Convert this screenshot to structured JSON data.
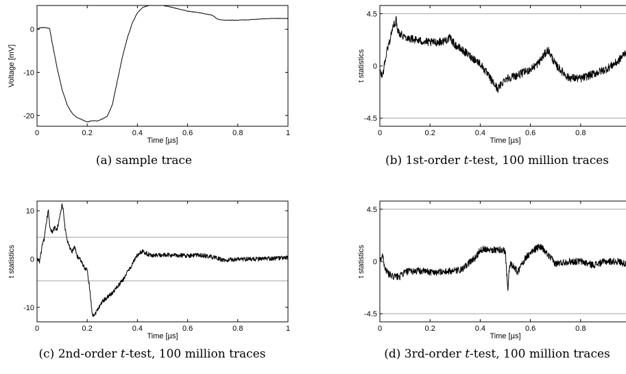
{
  "chart_data": [
    {
      "type": "line",
      "panel": "a",
      "caption": {
        "prefix": "(a) sample trace",
        "italic": "",
        "suffix": ""
      },
      "xlabel": "Time [µs]",
      "ylabel": "Voltage [mV]",
      "xlim": [
        0,
        1
      ],
      "ylim": [
        -22.5,
        5.5
      ],
      "xticks": [
        0,
        0.2,
        0.4,
        0.6,
        0.8,
        1
      ],
      "xtick_labels": [
        "0",
        "0.2",
        "0.4",
        "0.6",
        "0.8",
        "1"
      ],
      "yticks": [
        0,
        -10,
        -20
      ],
      "ytick_labels": [
        "0",
        "-10",
        "-20"
      ],
      "hlines": [],
      "noise": 0,
      "series": [
        {
          "x": [
            0,
            0.01,
            0.03,
            0.05,
            0.06,
            0.08,
            0.1,
            0.12,
            0.14,
            0.16,
            0.18,
            0.2,
            0.22,
            0.24,
            0.26,
            0.28,
            0.3,
            0.32,
            0.34,
            0.36,
            0.38,
            0.4,
            0.42,
            0.44,
            0.46,
            0.48,
            0.5,
            0.52,
            0.55,
            0.6,
            0.65,
            0.7,
            0.72,
            0.75,
            0.8,
            0.85,
            0.9,
            0.95,
            1
          ],
          "y": [
            0,
            0.3,
            0.4,
            0.2,
            -3,
            -9,
            -14,
            -17.5,
            -19.5,
            -20.5,
            -21,
            -21.5,
            -21.2,
            -21.3,
            -20.8,
            -20.2,
            -17.5,
            -12,
            -6.5,
            -2,
            1.5,
            3.8,
            5,
            5.4,
            5.6,
            5.6,
            5.5,
            5.3,
            4.9,
            4.2,
            3.8,
            3.2,
            2.3,
            2.1,
            2.1,
            2.2,
            2.4,
            2.5,
            2.5
          ]
        }
      ]
    },
    {
      "type": "line",
      "panel": "b",
      "caption": {
        "prefix": "(b) 1st-order ",
        "italic": "t",
        "suffix": "-test, 100 million traces"
      },
      "xlabel": "Time [µs]",
      "ylabel": "t statistics",
      "xlim": [
        0,
        1
      ],
      "ylim": [
        -5.2,
        5.2
      ],
      "xticks": [
        0,
        0.2,
        0.4,
        0.6,
        0.8
      ],
      "xtick_labels": [
        "0",
        "0.2",
        "0.4",
        "0.6",
        "0.8"
      ],
      "yticks": [
        4.5,
        0,
        -4.5
      ],
      "ytick_labels": [
        "4.5",
        "0",
        "-4.5"
      ],
      "hlines": [
        4.5,
        -4.5
      ],
      "noise": 0.35,
      "series": [
        {
          "x": [
            0,
            0.01,
            0.02,
            0.03,
            0.04,
            0.05,
            0.06,
            0.065,
            0.07,
            0.08,
            0.1,
            0.15,
            0.2,
            0.25,
            0.28,
            0.3,
            0.35,
            0.4,
            0.45,
            0.47,
            0.5,
            0.55,
            0.6,
            0.63,
            0.65,
            0.67,
            0.7,
            0.75,
            0.8,
            0.85,
            0.9,
            0.95,
            0.98
          ],
          "y": [
            -0.5,
            -0.9,
            0.3,
            1.5,
            2.2,
            3.2,
            3.7,
            4.0,
            3.2,
            2.8,
            2.5,
            2.2,
            2.0,
            2.1,
            2.4,
            1.8,
            1.0,
            0.2,
            -1.4,
            -2.0,
            -1.1,
            -0.8,
            -0.3,
            0.2,
            0.8,
            1.4,
            0.1,
            -1.0,
            -1.1,
            -0.7,
            -0.3,
            0.4,
            1.2
          ]
        }
      ]
    },
    {
      "type": "line",
      "panel": "c",
      "caption": {
        "prefix": "(c) 2nd-order ",
        "italic": "t",
        "suffix": "-test, 100 million traces"
      },
      "xlabel": "Time [µs]",
      "ylabel": "t statistics",
      "xlim": [
        0,
        1
      ],
      "ylim": [
        -13,
        12
      ],
      "xticks": [
        0,
        0.2,
        0.4,
        0.6,
        0.8,
        1
      ],
      "xtick_labels": [
        "0",
        "0.2",
        "0.4",
        "0.6",
        "0.8",
        "1"
      ],
      "yticks": [
        10,
        0,
        -10
      ],
      "ytick_labels": [
        "10",
        "0",
        "-10"
      ],
      "hlines": [
        4.5,
        -4.5
      ],
      "noise": 0.45,
      "series": [
        {
          "x": [
            0,
            0.01,
            0.02,
            0.03,
            0.04,
            0.045,
            0.05,
            0.06,
            0.07,
            0.08,
            0.09,
            0.1,
            0.105,
            0.11,
            0.12,
            0.13,
            0.14,
            0.15,
            0.16,
            0.17,
            0.18,
            0.19,
            0.2,
            0.21,
            0.22,
            0.23,
            0.24,
            0.26,
            0.3,
            0.34,
            0.38,
            0.4,
            0.42,
            0.45,
            0.5,
            0.55,
            0.6,
            0.65,
            0.7,
            0.75,
            0.8,
            0.9,
            1
          ],
          "y": [
            0,
            -0.5,
            2.5,
            4.5,
            8.5,
            10.2,
            7,
            5.5,
            6.5,
            6.3,
            8.5,
            11.3,
            9.8,
            7,
            4,
            2.5,
            1.5,
            2.8,
            0.5,
            0,
            -1,
            -1.8,
            -2.3,
            -6,
            -11.5,
            -11.5,
            -10.5,
            -8.8,
            -7,
            -4.5,
            -1,
            0.8,
            1.6,
            0.8,
            0.8,
            0.8,
            0.7,
            0.8,
            0.4,
            -0.3,
            0,
            0,
            0.3
          ]
        }
      ]
    },
    {
      "type": "line",
      "panel": "d",
      "caption": {
        "prefix": "(d) 3rd-order ",
        "italic": "t",
        "suffix": "-test, 100 million traces"
      },
      "xlabel": "Time [µs]",
      "ylabel": "t statistics",
      "xlim": [
        0,
        1
      ],
      "ylim": [
        -5.2,
        5.2
      ],
      "xticks": [
        0,
        0.2,
        0.4,
        0.6,
        0.8
      ],
      "xtick_labels": [
        "0",
        "0.2",
        "0.4",
        "0.6",
        "0.8"
      ],
      "yticks": [
        4.5,
        0,
        -4.5
      ],
      "ytick_labels": [
        "4.5",
        "0",
        "-4.5"
      ],
      "hlines": [
        4.5,
        -4.5
      ],
      "noise": 0.3,
      "series": [
        {
          "x": [
            0,
            0.01,
            0.02,
            0.03,
            0.05,
            0.08,
            0.1,
            0.15,
            0.2,
            0.25,
            0.3,
            0.33,
            0.36,
            0.38,
            0.4,
            0.42,
            0.45,
            0.48,
            0.5,
            0.505,
            0.51,
            0.515,
            0.52,
            0.55,
            0.58,
            0.6,
            0.62,
            0.64,
            0.66,
            0.7,
            0.75,
            0.8,
            0.85,
            0.9,
            0.95,
            0.98
          ],
          "y": [
            0,
            0.6,
            -0.5,
            -1,
            -1.3,
            -1.3,
            -0.9,
            -0.8,
            -0.9,
            -0.9,
            -0.8,
            -0.7,
            0,
            0.3,
            1.0,
            1.1,
            1.0,
            1.0,
            0.9,
            -0.8,
            -2.4,
            -0.8,
            -0.2,
            -0.9,
            0.3,
            0.7,
            1.1,
            1.3,
            0.8,
            -0.2,
            0,
            0,
            -0.3,
            0,
            0,
            -0.2
          ]
        }
      ]
    }
  ]
}
